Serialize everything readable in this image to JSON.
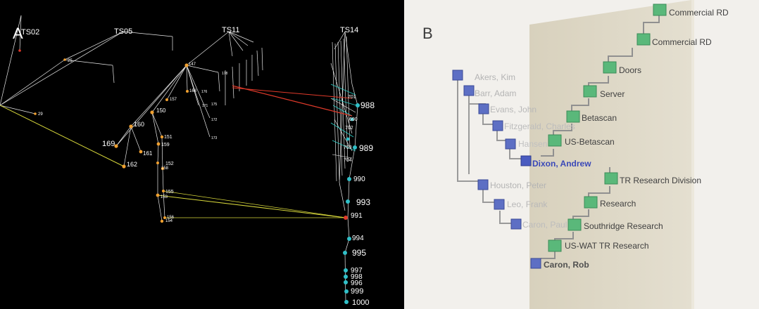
{
  "panel_a": {
    "letter": "A",
    "headers": [
      "TS02",
      "TS05",
      "TS11",
      "TS14"
    ],
    "orange_nodes": [
      "169",
      "160",
      "150",
      "147",
      "157",
      "168",
      "161",
      "159",
      "151",
      "152",
      "162",
      "158",
      "155",
      "153",
      "156",
      "154",
      "157",
      "29",
      "25"
    ],
    "cyan_nodes": [
      "988",
      "989",
      "990",
      "993",
      "991",
      "994",
      "995",
      "996",
      "997",
      "998",
      "996",
      "999",
      "1000"
    ],
    "cluster_labels": [
      "701",
      "690",
      "702",
      "703",
      "704",
      "688"
    ]
  },
  "panel_b": {
    "letter": "B",
    "people": [
      {
        "name": "Akers, Kim"
      },
      {
        "name": "Barr, Adam"
      },
      {
        "name": "Evans, John"
      },
      {
        "name": "Fitzgerald, Charles"
      },
      {
        "name": "Hansen"
      },
      {
        "name": "Dixon, Andrew"
      },
      {
        "name": "Houston, Peter"
      },
      {
        "name": "Leo, Frank"
      },
      {
        "name": "Caron, Paul"
      },
      {
        "name": "Caron, Rob"
      }
    ],
    "units": [
      {
        "name": "Commercial RD"
      },
      {
        "name": "Commercial RD"
      },
      {
        "name": "Doors"
      },
      {
        "name": "Server"
      },
      {
        "name": "Betascan"
      },
      {
        "name": "US-Betascan"
      },
      {
        "name": "TR Research Division"
      },
      {
        "name": "Research"
      },
      {
        "name": "Southridge Research"
      },
      {
        "name": "US-WAT TR Research"
      }
    ]
  }
}
